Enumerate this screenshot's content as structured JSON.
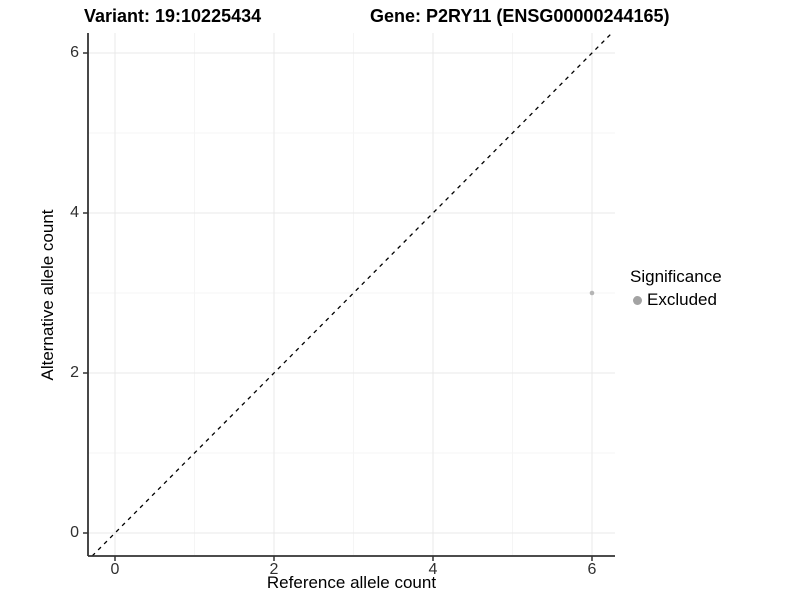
{
  "titles": {
    "variant": "Variant: 19:10225434",
    "gene": "Gene: P2RY11 (ENSG00000244165)"
  },
  "chart_data": {
    "type": "scatter",
    "title_left": "Variant: 19:10225434",
    "title_right": "Gene: P2RY11 (ENSG00000244165)",
    "xlabel": "Reference allele count",
    "ylabel": "Alternative allele count",
    "xlim": [
      -0.34,
      6.29
    ],
    "ylim": [
      -0.29,
      6.25
    ],
    "x_ticks": [
      0,
      2,
      4,
      6
    ],
    "y_ticks": [
      0,
      2,
      4,
      6
    ],
    "x_minor_ticks": [
      1,
      3,
      5
    ],
    "y_minor_ticks": [
      1,
      3,
      5
    ],
    "grid": true,
    "points": [
      {
        "x": 6,
        "y": 3,
        "series": "Excluded"
      }
    ],
    "reference_line": {
      "type": "abline",
      "slope": 1,
      "intercept": 0,
      "style": "dashed",
      "color": "#000000"
    },
    "legend": {
      "title": "Significance",
      "position": "right",
      "items": [
        {
          "label": "Excluded",
          "color": "#a3a3a3"
        }
      ]
    },
    "colors": {
      "point": "#b5b5b5",
      "axis_line": "#333333",
      "major_grid": "#e9e9e9",
      "minor_grid": "#f5f5f5",
      "background": "#ffffff"
    }
  }
}
